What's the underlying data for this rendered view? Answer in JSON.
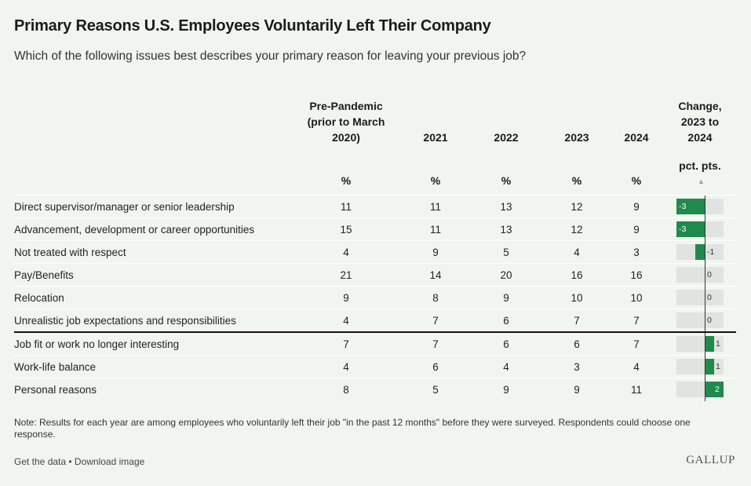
{
  "title": "Primary Reasons U.S. Employees Voluntarily Left Their Company",
  "subtitle": "Which of the following issues best describes your primary reason for leaving your previous job?",
  "columns": {
    "pre": [
      "Pre-Pandemic",
      "(prior to March",
      "2020)"
    ],
    "y2021": "2021",
    "y2022": "2022",
    "y2023": "2023",
    "y2024": "2024",
    "change": [
      "Change,",
      "2023 to",
      "2024"
    ],
    "change_unit": "pct. pts.",
    "pct": "%"
  },
  "note": "Note: Results for each year are among employees who voluntarily left their job \"in the past 12 months\" before they were surveyed. Respondents could choose one response.",
  "footer_links": "Get the data • Download image",
  "logo": "GALLUP",
  "colors": {
    "bar": "#1f8a4c",
    "bar_bg": "#e0e3df",
    "background": "#f0f6ef"
  },
  "chart_data": {
    "type": "table",
    "columns": [
      "Pre-Pandemic (prior to March 2020)",
      "2021",
      "2022",
      "2023",
      "2024",
      "Change, 2023 to 2024"
    ],
    "rows": [
      {
        "label": "Direct supervisor/manager or senior leadership",
        "values": [
          11,
          11,
          13,
          12,
          9
        ],
        "change": -3,
        "change_label": "-3"
      },
      {
        "label": "Advancement, development or career opportunities",
        "values": [
          15,
          11,
          13,
          12,
          9
        ],
        "change": -3,
        "change_label": "-3"
      },
      {
        "label": "Not treated with respect",
        "values": [
          4,
          9,
          5,
          4,
          3
        ],
        "change": -1,
        "change_label": "-1"
      },
      {
        "label": "Pay/Benefits",
        "values": [
          21,
          14,
          20,
          16,
          16
        ],
        "change": 0,
        "change_label": "0"
      },
      {
        "label": "Relocation",
        "values": [
          9,
          8,
          9,
          10,
          10
        ],
        "change": 0,
        "change_label": "0"
      },
      {
        "label": "Unrealistic job expectations and responsibilities",
        "values": [
          4,
          7,
          6,
          7,
          7
        ],
        "change": 0,
        "change_label": "0"
      },
      {
        "label": "Job fit or work no longer interesting",
        "values": [
          7,
          7,
          6,
          6,
          7
        ],
        "change": 1,
        "change_label": "1"
      },
      {
        "label": "Work-life balance",
        "values": [
          4,
          6,
          4,
          3,
          4
        ],
        "change": 1,
        "change_label": "1"
      },
      {
        "label": "Personal reasons",
        "values": [
          8,
          5,
          9,
          9,
          11
        ],
        "change": 2,
        "change_label": "2"
      }
    ],
    "change_range": [
      -3,
      2
    ]
  }
}
